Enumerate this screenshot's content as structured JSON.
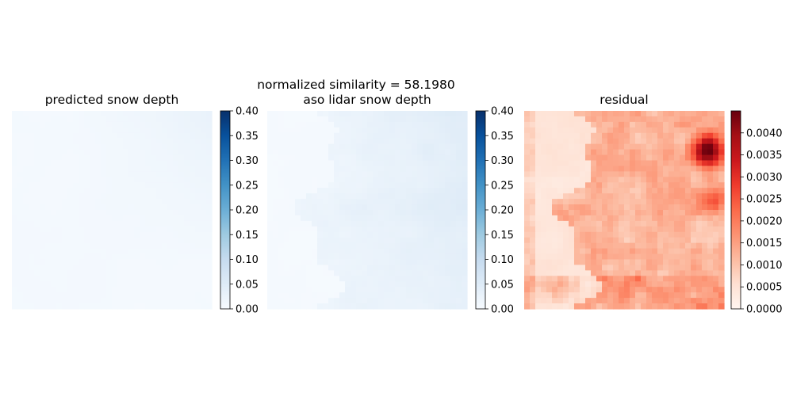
{
  "figure": {
    "suptitle": "normalized similarity = 58.1980"
  },
  "chart_data": [
    {
      "type": "heatmap",
      "title": "predicted snow depth",
      "colormap": "Blues",
      "vmin": 0.0,
      "vmax": 0.4,
      "colorbar_ticks": [
        "0.00",
        "0.05",
        "0.10",
        "0.15",
        "0.20",
        "0.25",
        "0.30",
        "0.35",
        "0.40"
      ],
      "approx_value_range": [
        0.0,
        0.03
      ]
    },
    {
      "type": "heatmap",
      "title": "aso lidar snow depth",
      "colormap": "Blues",
      "vmin": 0.0,
      "vmax": 0.4,
      "colorbar_ticks": [
        "0.00",
        "0.05",
        "0.10",
        "0.15",
        "0.20",
        "0.25",
        "0.30",
        "0.35",
        "0.40"
      ],
      "approx_value_range": [
        0.0,
        0.05
      ]
    },
    {
      "type": "heatmap",
      "title": "residual",
      "colormap": "Reds",
      "vmin": 0.0,
      "vmax": 0.0045,
      "colorbar_ticks": [
        "0.0000",
        "0.0005",
        "0.0010",
        "0.0015",
        "0.0020",
        "0.0025",
        "0.0030",
        "0.0035",
        "0.0040"
      ],
      "approx_value_range": [
        0.0,
        0.0045
      ]
    }
  ]
}
